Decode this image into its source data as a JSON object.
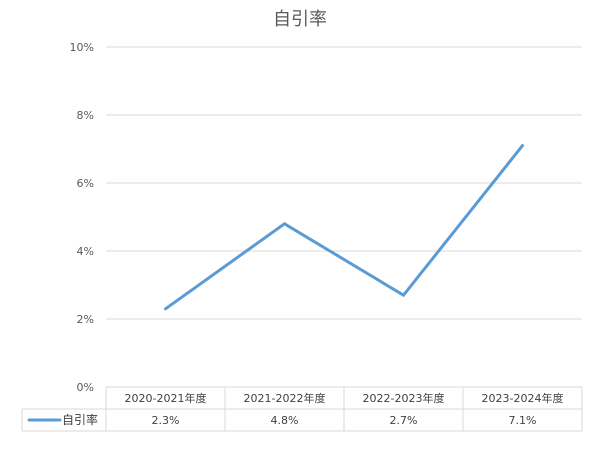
{
  "chart_data": {
    "type": "line",
    "title": "自引率",
    "xlabel": "",
    "ylabel": "",
    "categories": [
      "2020-2021年度",
      "2021-2022年度",
      "2022-2023年度",
      "2023-2024年度"
    ],
    "series": [
      {
        "name": "自引率",
        "values": [
          2.3,
          4.8,
          2.7,
          7.1
        ],
        "value_labels": [
          "2.3%",
          "4.8%",
          "2.7%",
          "7.1%"
        ],
        "color": "#5B9BD5"
      }
    ],
    "y_ticks": [
      0,
      2,
      4,
      6,
      8,
      10
    ],
    "y_tick_labels": [
      "0%",
      "2%",
      "4%",
      "6%",
      "8%",
      "10%"
    ],
    "ylim": [
      0,
      10
    ],
    "grid": true,
    "legend": "data-table-left",
    "data_table": true
  }
}
